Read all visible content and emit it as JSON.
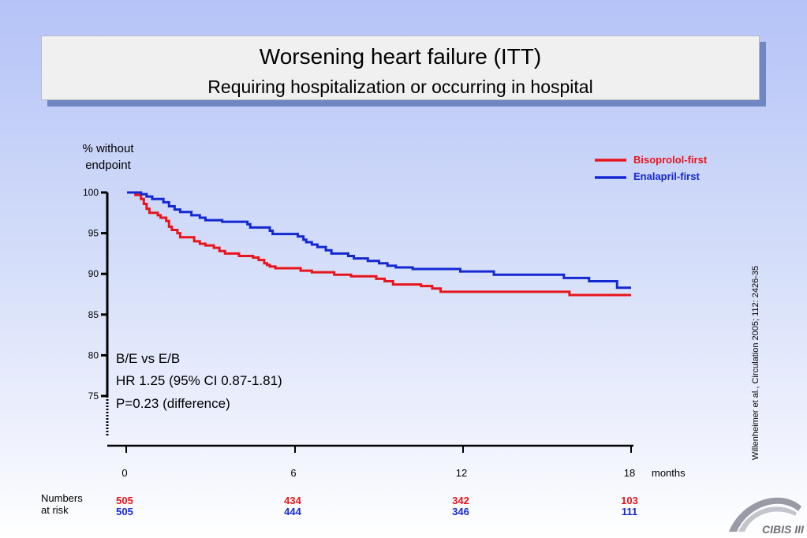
{
  "title": "Worsening heart failure (ITT)",
  "subtitle": "Requiring hospitalization or occurring in hospital",
  "citation": "Willenheimer et al., Circulation 2005; 112: 2426-35",
  "logo_text": "CIBIS III",
  "risk_table": {
    "label_line1": "Numbers",
    "label_line2": "at risk",
    "bisoprolol": [
      "505",
      "434",
      "342",
      "103"
    ],
    "enalapril": [
      "505",
      "444",
      "346",
      "111"
    ]
  },
  "stats": {
    "line1": "B/E vs E/B",
    "line2": "HR 1.25 (95% CI 0.87-1.81)",
    "line3": "P=0.23 (difference)"
  },
  "colors": {
    "bisoprolol": "#e8141b",
    "enalapril": "#1428d2"
  },
  "chart_data": {
    "type": "line",
    "title": "Worsening heart failure (ITT)",
    "subtitle": "Requiring hospitalization or occurring in hospital",
    "ylabel_line1": "% without",
    "ylabel_line2": "endpoint",
    "xlabel": "months",
    "xticks": [
      0,
      6,
      12,
      18
    ],
    "yticks": [
      75,
      80,
      85,
      90,
      95,
      100
    ],
    "xlim": [
      0,
      18
    ],
    "ylim": [
      75,
      100
    ],
    "legend_position": "top-right",
    "series": [
      {
        "name": "Bisoprolol-first",
        "color": "#e8141b",
        "points": [
          [
            0,
            100
          ],
          [
            0.3,
            99.7
          ],
          [
            0.5,
            99.2
          ],
          [
            0.6,
            98.6
          ],
          [
            0.7,
            98
          ],
          [
            0.8,
            97.5
          ],
          [
            1.1,
            97.2
          ],
          [
            1.2,
            96.9
          ],
          [
            1.4,
            96.5
          ],
          [
            1.5,
            95.8
          ],
          [
            1.6,
            95.4
          ],
          [
            1.8,
            95
          ],
          [
            1.9,
            94.5
          ],
          [
            2.4,
            94
          ],
          [
            2.6,
            93.7
          ],
          [
            2.8,
            93.5
          ],
          [
            3.1,
            93.2
          ],
          [
            3.3,
            92.8
          ],
          [
            3.5,
            92.5
          ],
          [
            4,
            92.2
          ],
          [
            4.5,
            92
          ],
          [
            4.7,
            91.7
          ],
          [
            4.9,
            91.3
          ],
          [
            5,
            91.1
          ],
          [
            5.1,
            90.9
          ],
          [
            5.3,
            90.7
          ],
          [
            6.2,
            90.4
          ],
          [
            6.6,
            90.2
          ],
          [
            7.4,
            89.9
          ],
          [
            8,
            89.7
          ],
          [
            8.9,
            89.4
          ],
          [
            9.2,
            89.1
          ],
          [
            9.5,
            88.7
          ],
          [
            10.5,
            88.5
          ],
          [
            10.9,
            88.2
          ],
          [
            11.2,
            87.8
          ],
          [
            15.8,
            87.4
          ],
          [
            18,
            87.4
          ]
        ]
      },
      {
        "name": "Enalapril-first",
        "color": "#1428d2",
        "points": [
          [
            0,
            100
          ],
          [
            0.5,
            99.8
          ],
          [
            0.7,
            99.5
          ],
          [
            0.9,
            99.2
          ],
          [
            1.3,
            98.8
          ],
          [
            1.5,
            98.3
          ],
          [
            1.7,
            97.9
          ],
          [
            1.9,
            97.6
          ],
          [
            2.3,
            97.2
          ],
          [
            2.6,
            96.9
          ],
          [
            2.8,
            96.6
          ],
          [
            3.4,
            96.4
          ],
          [
            4.3,
            96.1
          ],
          [
            4.4,
            95.7
          ],
          [
            5.1,
            95.3
          ],
          [
            5.2,
            94.9
          ],
          [
            6.1,
            94.6
          ],
          [
            6.3,
            94.2
          ],
          [
            6.4,
            93.9
          ],
          [
            6.6,
            93.6
          ],
          [
            6.8,
            93.3
          ],
          [
            7.1,
            92.9
          ],
          [
            7.3,
            92.5
          ],
          [
            7.9,
            92.2
          ],
          [
            8.1,
            91.9
          ],
          [
            8.6,
            91.6
          ],
          [
            9,
            91.3
          ],
          [
            9.3,
            91
          ],
          [
            9.6,
            90.8
          ],
          [
            10.2,
            90.6
          ],
          [
            11.9,
            90.3
          ],
          [
            13.1,
            89.9
          ],
          [
            15.6,
            89.5
          ],
          [
            16.5,
            89.1
          ],
          [
            17.5,
            88.3
          ],
          [
            18,
            88.3
          ]
        ]
      }
    ]
  }
}
